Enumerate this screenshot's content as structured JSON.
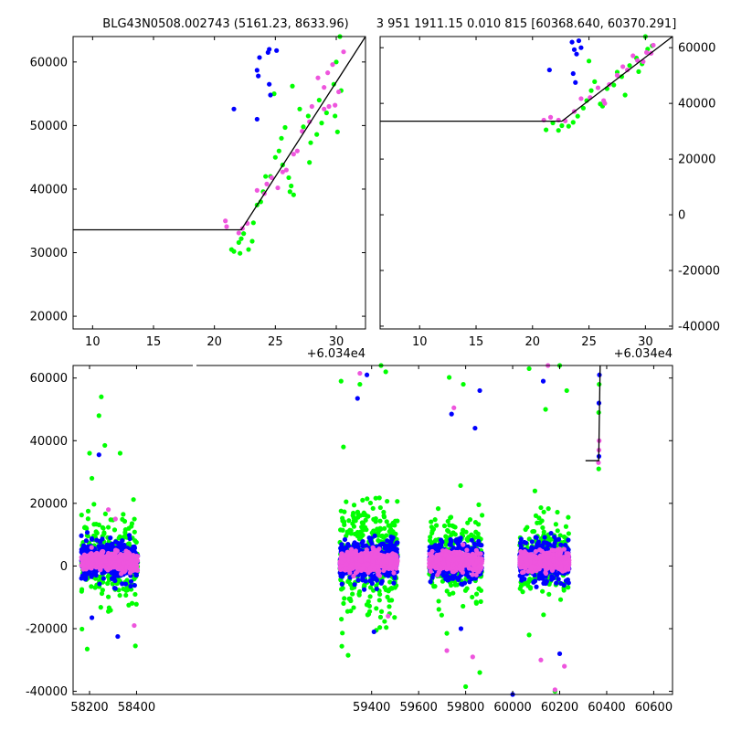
{
  "title_left": "BLG43N0508.002743 (5161.23, 8633.96)",
  "title_right": "3 951 1911.15 0.010 815 [60368.640, 60370.291]",
  "colors": {
    "blue": "#0000ff",
    "green": "#00ff00",
    "magenta": "#ee55dd",
    "fit": "#000000"
  },
  "chart_data": [
    {
      "type": "scatter",
      "panel": "top-left",
      "xlim": [
        8.4,
        32.4
      ],
      "ylim": [
        18000,
        64000
      ],
      "xticks": [
        10,
        15,
        20,
        25,
        30
      ],
      "yticks": [
        20000,
        30000,
        40000,
        50000,
        60000
      ],
      "x_offset_label": "+6.034e4",
      "fit_line": [
        [
          8.4,
          33600
        ],
        [
          22.2,
          33600
        ],
        [
          32.4,
          64000
        ]
      ],
      "series": [
        {
          "color": "green",
          "points": [
            [
              21.4,
              30500
            ],
            [
              21.6,
              30200
            ],
            [
              22.0,
              31600
            ],
            [
              22.2,
              32200
            ],
            [
              22.4,
              33000
            ],
            [
              22.1,
              29900
            ],
            [
              22.8,
              30500
            ],
            [
              23.1,
              31800
            ],
            [
              23.2,
              34700
            ],
            [
              23.5,
              37500
            ],
            [
              23.8,
              38000
            ],
            [
              24.0,
              39600
            ],
            [
              24.2,
              42000
            ],
            [
              24.6,
              42000
            ],
            [
              25.0,
              45000
            ],
            [
              25.3,
              46000
            ],
            [
              25.6,
              43800
            ],
            [
              26.1,
              41800
            ],
            [
              26.3,
              40500
            ],
            [
              26.2,
              39600
            ],
            [
              26.5,
              39100
            ],
            [
              25.8,
              49700
            ],
            [
              24.9,
              55000
            ],
            [
              27.0,
              52600
            ],
            [
              27.3,
              49800
            ],
            [
              27.7,
              51500
            ],
            [
              27.9,
              47300
            ],
            [
              28.4,
              48600
            ],
            [
              28.8,
              50400
            ],
            [
              29.2,
              52000
            ],
            [
              29.9,
              51500
            ],
            [
              30.1,
              49000
            ],
            [
              30.4,
              55500
            ],
            [
              30.0,
              60000
            ],
            [
              30.3,
              64000
            ],
            [
              29.8,
              56500
            ],
            [
              28.6,
              54000
            ],
            [
              27.8,
              44200
            ],
            [
              26.4,
              56200
            ],
            [
              25.5,
              48000
            ]
          ]
        },
        {
          "color": "blue",
          "points": [
            [
              21.6,
              52600
            ],
            [
              23.5,
              58700
            ],
            [
              23.6,
              57800
            ],
            [
              23.7,
              60700
            ],
            [
              23.5,
              51000
            ],
            [
              24.4,
              61500
            ],
            [
              24.5,
              62000
            ],
            [
              24.5,
              56500
            ],
            [
              24.6,
              54800
            ],
            [
              25.1,
              61800
            ]
          ]
        },
        {
          "color": "magenta",
          "points": [
            [
              20.9,
              35000
            ],
            [
              21.0,
              34100
            ],
            [
              22.0,
              33100
            ],
            [
              22.3,
              33800
            ],
            [
              22.7,
              34600
            ],
            [
              23.5,
              39800
            ],
            [
              24.1,
              39300
            ],
            [
              24.3,
              40800
            ],
            [
              24.7,
              41800
            ],
            [
              25.2,
              40200
            ],
            [
              25.9,
              43000
            ],
            [
              26.5,
              45500
            ],
            [
              26.8,
              46000
            ],
            [
              27.2,
              49100
            ],
            [
              27.8,
              50600
            ],
            [
              28.0,
              53000
            ],
            [
              28.5,
              57500
            ],
            [
              29.0,
              56000
            ],
            [
              29.4,
              53000
            ],
            [
              29.9,
              53200
            ],
            [
              29.3,
              58300
            ],
            [
              29.7,
              59600
            ],
            [
              30.2,
              55300
            ],
            [
              30.6,
              61600
            ],
            [
              29.0,
              52600
            ],
            [
              25.6,
              42700
            ]
          ]
        }
      ]
    },
    {
      "type": "scatter",
      "panel": "top-right",
      "xlim": [
        6.5,
        32.4
      ],
      "ylim": [
        -41000,
        64000
      ],
      "xticks": [
        10,
        15,
        20,
        25,
        30
      ],
      "yticks": [
        -40000,
        -20000,
        0,
        20000,
        40000,
        60000
      ],
      "x_offset_label": "+6.034e4",
      "fit_line": [
        [
          6.5,
          33600
        ],
        [
          22.6,
          33600
        ],
        [
          32.4,
          64000
        ]
      ],
      "series": [
        {
          "color": "green",
          "points": [
            [
              21.2,
              30500
            ],
            [
              21.8,
              33000
            ],
            [
              22.3,
              30300
            ],
            [
              22.6,
              32000
            ],
            [
              23.2,
              31800
            ],
            [
              23.6,
              33200
            ],
            [
              24.0,
              35400
            ],
            [
              24.5,
              38300
            ],
            [
              24.8,
              41000
            ],
            [
              25.2,
              44600
            ],
            [
              25.5,
              47800
            ],
            [
              26.0,
              39800
            ],
            [
              26.2,
              39000
            ],
            [
              26.6,
              45300
            ],
            [
              27.2,
              46600
            ],
            [
              27.5,
              51200
            ],
            [
              27.9,
              49600
            ],
            [
              28.2,
              43000
            ],
            [
              28.6,
              53600
            ],
            [
              29.2,
              56300
            ],
            [
              29.7,
              54200
            ],
            [
              30.2,
              59500
            ],
            [
              30.6,
              60700
            ],
            [
              30.0,
              64000
            ],
            [
              29.4,
              51400
            ],
            [
              25.0,
              55200
            ]
          ]
        },
        {
          "color": "blue",
          "points": [
            [
              21.5,
              52000
            ],
            [
              23.5,
              62000
            ],
            [
              23.7,
              59300
            ],
            [
              23.9,
              57700
            ],
            [
              23.6,
              50700
            ],
            [
              24.1,
              62500
            ],
            [
              24.3,
              60000
            ],
            [
              23.8,
              47500
            ]
          ]
        },
        {
          "color": "magenta",
          "points": [
            [
              21.0,
              34000
            ],
            [
              21.6,
              35000
            ],
            [
              22.3,
              34000
            ],
            [
              22.9,
              33700
            ],
            [
              23.7,
              37100
            ],
            [
              24.3,
              41700
            ],
            [
              25.1,
              42100
            ],
            [
              25.8,
              45600
            ],
            [
              26.3,
              41000
            ],
            [
              26.8,
              46800
            ],
            [
              27.5,
              50100
            ],
            [
              28.0,
              53200
            ],
            [
              28.4,
              52000
            ],
            [
              28.9,
              57100
            ],
            [
              29.3,
              55400
            ],
            [
              29.8,
              55000
            ],
            [
              30.1,
              58300
            ],
            [
              30.5,
              58000
            ],
            [
              30.7,
              60900
            ],
            [
              26.4,
              40000
            ]
          ]
        }
      ]
    },
    {
      "type": "scatter",
      "panel": "bottom",
      "xlim": [
        58130,
        60680
      ],
      "ylim": [
        -41000,
        64000
      ],
      "xticks": [
        58200,
        58400,
        59400,
        59600,
        59800,
        60000,
        60200,
        60400,
        60600
      ],
      "yticks": [
        -40000,
        -20000,
        0,
        20000,
        40000,
        60000
      ],
      "seasons": [
        [
          58165,
          58405
        ],
        [
          59265,
          59510
        ],
        [
          59645,
          59870
        ],
        [
          60030,
          60240
        ]
      ],
      "outliers": {
        "green": [
          [
            58200,
            36000
          ],
          [
            58210,
            28000
          ],
          [
            58240,
            48000
          ],
          [
            58250,
            54000
          ],
          [
            58265,
            38500
          ],
          [
            58190,
            -26500
          ],
          [
            58330,
            36000
          ],
          [
            58280,
            -14500
          ],
          [
            58395,
            -25500
          ],
          [
            59270,
            59000
          ],
          [
            59280,
            38000
          ],
          [
            59350,
            58000
          ],
          [
            59440,
            64000
          ],
          [
            59460,
            62000
          ],
          [
            59300,
            -28500
          ],
          [
            59420,
            -20500
          ],
          [
            59730,
            60200
          ],
          [
            59790,
            58000
          ],
          [
            59800,
            -38500
          ],
          [
            59720,
            -21500
          ],
          [
            59860,
            -34000
          ],
          [
            60070,
            63000
          ],
          [
            60140,
            50000
          ],
          [
            60200,
            64000
          ],
          [
            60230,
            56000
          ],
          [
            60070,
            -22000
          ],
          [
            60180,
            -40000
          ]
        ],
        "blue": [
          [
            58240,
            35500
          ],
          [
            58320,
            -22500
          ],
          [
            58210,
            -16500
          ],
          [
            59340,
            53500
          ],
          [
            59380,
            61000
          ],
          [
            59410,
            -21000
          ],
          [
            59740,
            48500
          ],
          [
            59840,
            44000
          ],
          [
            59860,
            56000
          ],
          [
            59780,
            -20000
          ],
          [
            60000,
            -41000
          ],
          [
            60130,
            59000
          ],
          [
            60200,
            -28000
          ]
        ],
        "magenta": [
          [
            58280,
            18000
          ],
          [
            58310,
            15000
          ],
          [
            58390,
            -19000
          ],
          [
            59350,
            61500
          ],
          [
            59470,
            -16000
          ],
          [
            59750,
            50500
          ],
          [
            59720,
            -27000
          ],
          [
            59830,
            -29000
          ],
          [
            60150,
            64000
          ],
          [
            60120,
            -30000
          ],
          [
            60180,
            -39500
          ],
          [
            60220,
            -32000
          ]
        ]
      },
      "fit_line": [
        [
          60310,
          33600
        ],
        [
          60366,
          33600
        ],
        [
          60372,
          64000
        ]
      ],
      "right_cluster": [
        [
          60365,
          33000
        ],
        [
          60366,
          31000
        ],
        [
          60367,
          35000
        ],
        [
          60367,
          37000
        ],
        [
          60368,
          58000
        ],
        [
          60369,
          61000
        ],
        [
          60368,
          40000
        ],
        [
          60366,
          49000
        ],
        [
          60367,
          52000
        ]
      ]
    }
  ]
}
